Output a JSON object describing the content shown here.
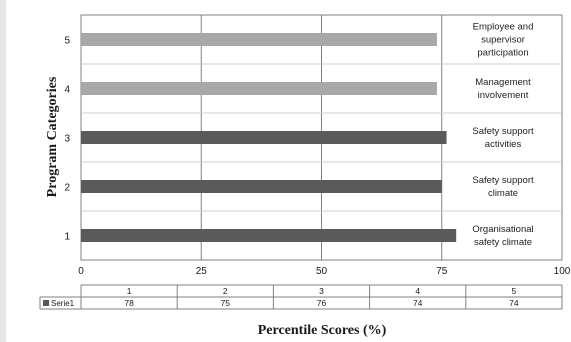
{
  "chart_data": {
    "type": "bar",
    "orientation": "horizontal",
    "ylabel": "Program Categories",
    "xlabel": "Percentile Scores (%)",
    "xlim": [
      0,
      100
    ],
    "x_ticks": [
      0,
      25,
      50,
      75,
      100
    ],
    "categories": [
      "1",
      "2",
      "3",
      "4",
      "5"
    ],
    "category_descriptions": [
      [
        "Organisational",
        "safety climate"
      ],
      [
        "Safety support",
        "climate"
      ],
      [
        "Safety support",
        "activities"
      ],
      [
        "Management",
        "involvement"
      ],
      [
        "Employee and",
        "supervisor",
        "participation"
      ]
    ],
    "series": [
      {
        "name": "Serie1",
        "values": [
          78,
          75,
          76,
          74,
          74
        ]
      }
    ],
    "bar_colors": [
      "#5a5a5a",
      "#5a5a5a",
      "#5a5a5a",
      "#a8a8a8",
      "#a8a8a8"
    ],
    "grid": true,
    "data_table": {
      "header": [
        "1",
        "2",
        "3",
        "4",
        "5"
      ],
      "rows": [
        {
          "label": "Serie1",
          "values": [
            "78",
            "75",
            "76",
            "74",
            "74"
          ]
        }
      ]
    }
  }
}
